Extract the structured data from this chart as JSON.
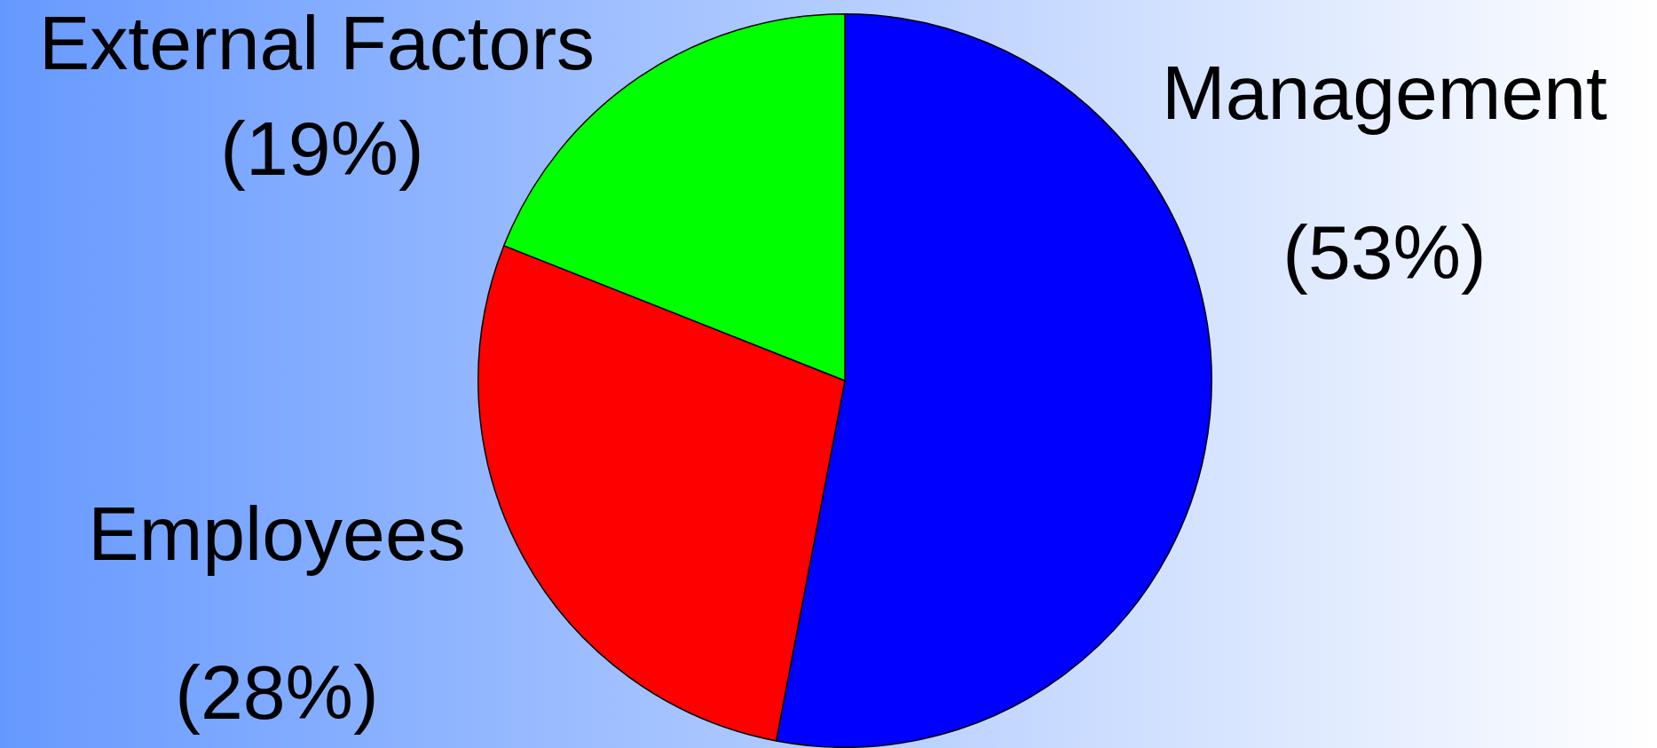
{
  "chart_data": {
    "type": "pie",
    "categories": [
      "Management",
      "Employees",
      "External Factors"
    ],
    "values": [
      53,
      28,
      19
    ],
    "colors": [
      "#0000ff",
      "#ff0000",
      "#00ff00"
    ],
    "value_labels": [
      "(53%)",
      "(28%)",
      "(19%)"
    ],
    "legend": false
  }
}
